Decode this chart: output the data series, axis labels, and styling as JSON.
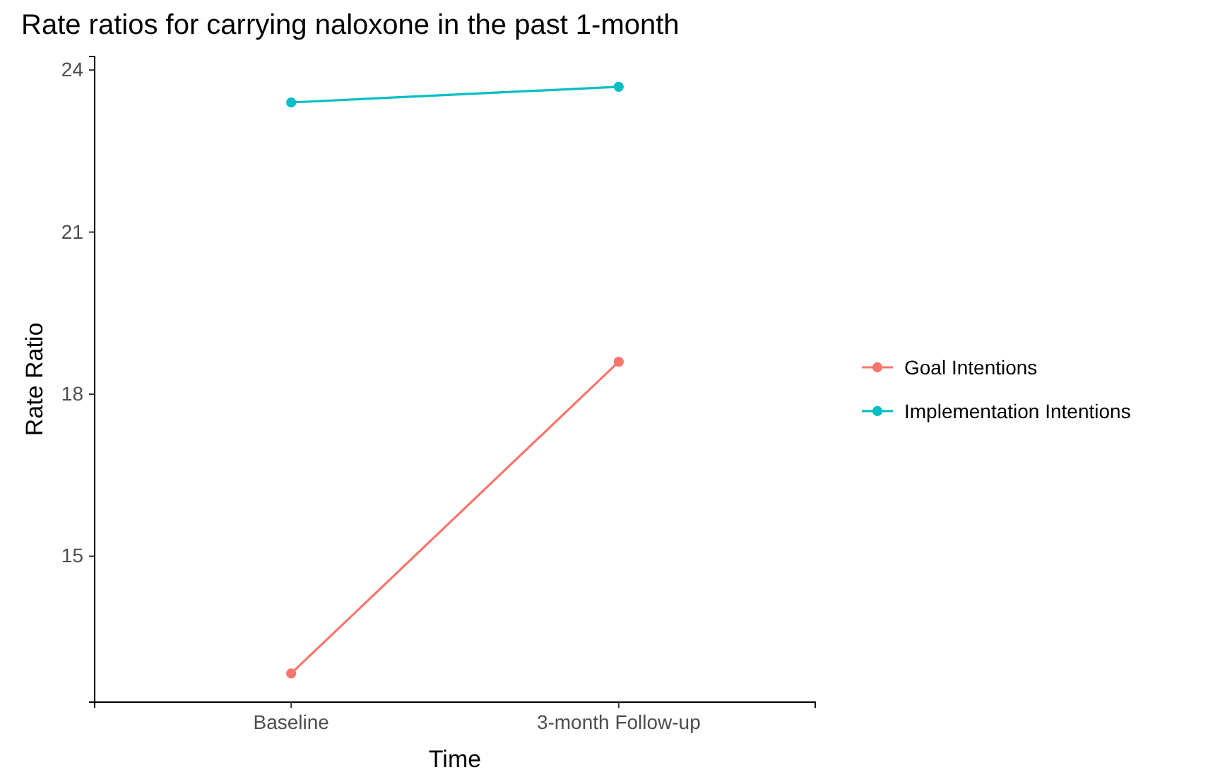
{
  "chart_data": {
    "type": "line",
    "title": "Rate ratios for carrying naloxone in the past 1-month",
    "xlabel": "Time",
    "ylabel": "Rate Ratio",
    "categories": [
      "Baseline",
      "3-month Follow-up"
    ],
    "series": [
      {
        "name": "Goal Intentions",
        "color": "#f8766d",
        "values": [
          12.83,
          18.6
        ]
      },
      {
        "name": "Implementation Intentions",
        "color": "#00bfc4",
        "values": [
          23.4,
          23.69
        ]
      }
    ],
    "ylim": [
      12.3,
      24.25
    ],
    "yticks": [
      15,
      18,
      21,
      24
    ],
    "grid": false,
    "legend": "right",
    "marker": "circle",
    "line_style": "solid"
  }
}
